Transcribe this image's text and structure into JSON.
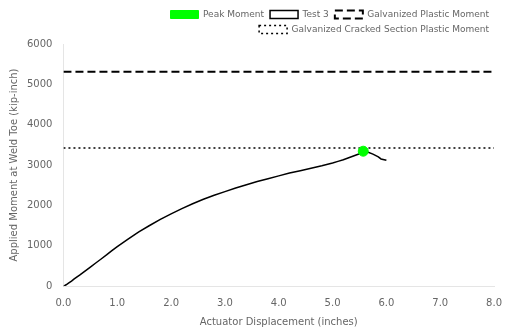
{
  "chart_data": {
    "type": "line",
    "xlabel": "Actuator Displacement (inches)",
    "ylabel": "Applied Moment at Weld Toe (kip-inch)",
    "xlim": [
      0.0,
      8.0
    ],
    "ylim": [
      0,
      6000
    ],
    "xticks": [
      {
        "value": 0.0,
        "label": "0.0"
      },
      {
        "value": 1.0,
        "label": "1.0"
      },
      {
        "value": 2.0,
        "label": "2.0"
      },
      {
        "value": 3.0,
        "label": "3.0"
      },
      {
        "value": 4.0,
        "label": "4.0"
      },
      {
        "value": 5.0,
        "label": "5.0"
      },
      {
        "value": 6.0,
        "label": "6.0"
      },
      {
        "value": 7.0,
        "label": "7.0"
      },
      {
        "value": 8.0,
        "label": "8.0"
      }
    ],
    "yticks": [
      0,
      1000,
      2000,
      3000,
      4000,
      5000,
      6000
    ],
    "grid": false,
    "legend": "upper right",
    "series": [
      {
        "name": "Test 3",
        "type": "line",
        "color": "#000000",
        "line_style": "solid",
        "x": [
          0.0,
          0.02,
          0.05,
          0.1,
          0.15,
          0.2,
          0.3,
          0.4,
          0.5,
          0.6,
          0.7,
          0.8,
          0.9,
          1.0,
          1.2,
          1.4,
          1.6,
          1.8,
          2.0,
          2.2,
          2.4,
          2.6,
          2.8,
          3.0,
          3.2,
          3.4,
          3.6,
          3.8,
          4.0,
          4.2,
          4.4,
          4.6,
          4.8,
          5.0,
          5.1,
          5.2,
          5.3,
          5.4,
          5.5,
          5.57,
          5.65,
          5.75,
          5.85,
          5.9,
          6.0
        ],
        "values": [
          0,
          10,
          30,
          75,
          120,
          175,
          270,
          370,
          470,
          570,
          670,
          770,
          875,
          975,
          1160,
          1340,
          1500,
          1650,
          1790,
          1920,
          2040,
          2150,
          2250,
          2340,
          2430,
          2510,
          2590,
          2660,
          2730,
          2800,
          2860,
          2920,
          2980,
          3050,
          3090,
          3130,
          3180,
          3230,
          3280,
          3342,
          3320,
          3270,
          3200,
          3150,
          3120
        ]
      },
      {
        "name": "Galvanized Plastic Moment",
        "type": "hline",
        "color": "#000000",
        "line_style": "dashed",
        "values": [
          5310
        ]
      },
      {
        "name": "Galvanized Cracked Section Plastic Moment",
        "type": "hline",
        "color": "#000000",
        "line_style": "dotted",
        "values": [
          3420
        ]
      },
      {
        "name": "Peak Moment",
        "type": "scatter",
        "color": "#00ff00",
        "marker": "circle",
        "x": [
          5.57
        ],
        "values": [
          3342
        ]
      }
    ]
  }
}
